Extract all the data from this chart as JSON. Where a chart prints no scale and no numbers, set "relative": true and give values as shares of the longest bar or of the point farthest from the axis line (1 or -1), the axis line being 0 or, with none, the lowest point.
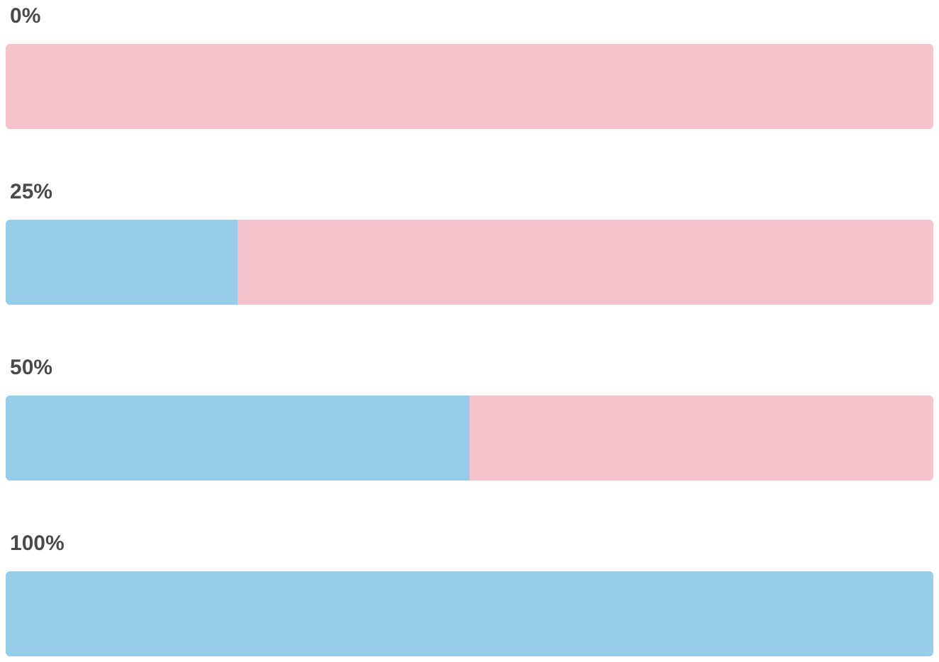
{
  "chart_data": {
    "type": "bar",
    "orientation": "horizontal",
    "stacked": true,
    "relative": true,
    "categories": [
      "0%",
      "25%",
      "50%",
      "100%"
    ],
    "series": [
      {
        "color": "#98cde9",
        "values": [
          0,
          0.25,
          0.5,
          1
        ]
      },
      {
        "color": "#f5c3cc",
        "values": [
          1,
          0.75,
          0.5,
          0
        ]
      }
    ]
  }
}
